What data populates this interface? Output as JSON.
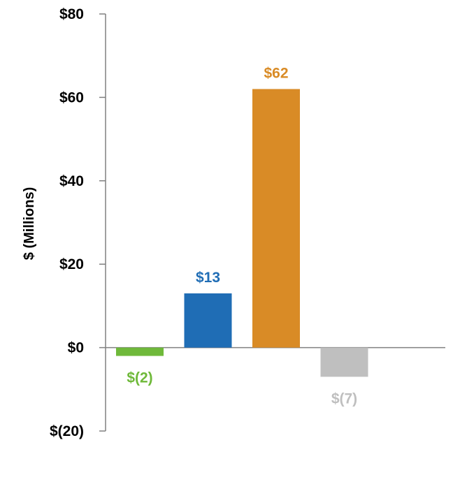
{
  "chart_data": {
    "type": "bar",
    "title": "",
    "xlabel": "",
    "ylabel": "$ (Millions)",
    "ylim": [
      -20,
      80
    ],
    "yticks": [
      80,
      60,
      40,
      20,
      0,
      -20
    ],
    "ytick_labels": [
      "$80",
      "$60",
      "$40",
      "$20",
      "$0",
      "$(20)"
    ],
    "grid": false,
    "legend": "none",
    "bars": [
      {
        "value": -2,
        "label": "$(2)",
        "color": "#6fb93a"
      },
      {
        "value": 13,
        "label": "$13",
        "color": "#1f6db5"
      },
      {
        "value": 62,
        "label": "$62",
        "color": "#d98b26"
      },
      {
        "value": -7,
        "label": "$(7)",
        "color": "#bfbfbf"
      }
    ]
  }
}
